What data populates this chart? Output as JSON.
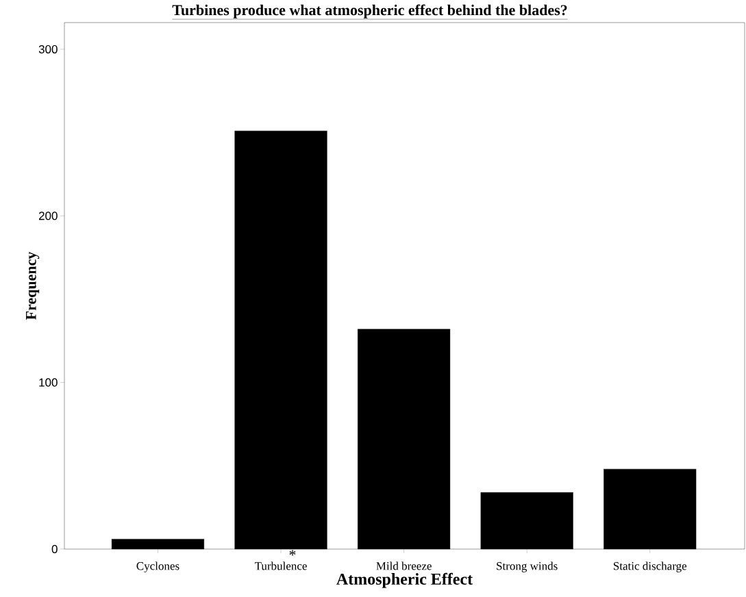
{
  "chart_data": {
    "type": "bar",
    "title": "Turbines produce what atmospheric effect behind the blades?",
    "xlabel": "Atmospheric Effect",
    "ylabel": "Frequency",
    "categories": [
      "Cyclones",
      "Turbulence",
      "Mild breeze",
      "Strong winds",
      "Static discharge"
    ],
    "values": [
      6,
      251,
      132,
      34,
      48
    ],
    "color": "#000000",
    "ylim": [
      0,
      316
    ],
    "yticks": [
      0,
      100,
      200,
      300
    ],
    "grid": false,
    "annotations": [
      "*"
    ]
  }
}
